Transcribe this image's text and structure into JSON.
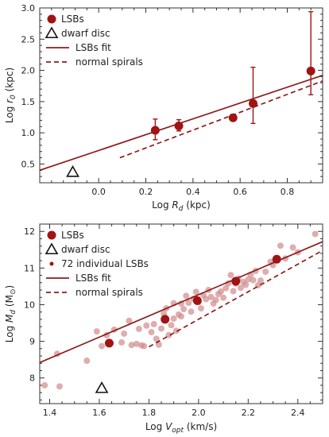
{
  "colors": {
    "lsb": "#a01414",
    "fit": "#8e1b1b",
    "individual": "#d08a8a",
    "dwarf": "#111111",
    "frame": "#333333"
  },
  "chart_data": [
    {
      "type": "scatter",
      "xlabel_main": "Log ",
      "xlabel_var": "R",
      "xlabel_sub": "d",
      "xlabel_unit": " (kpc)",
      "ylabel_main": "Log ",
      "ylabel_var": "r",
      "ylabel_sub": "0",
      "ylabel_unit": " (kpc)",
      "xlim": [
        -0.25,
        0.95
      ],
      "ylim": [
        0.2,
        3.0
      ],
      "x_ticks": [
        0.0,
        0.2,
        0.4,
        0.6,
        0.8
      ],
      "x_tick_labels": [
        "0.0",
        "0.2",
        "0.4",
        "0.6",
        "0.8"
      ],
      "y_ticks": [
        0.5,
        1.0,
        1.5,
        2.0,
        2.5,
        3.0
      ],
      "y_tick_labels": [
        "0.5",
        "1.0",
        "1.5",
        "2.0",
        "2.5",
        "3.0"
      ],
      "legend_position": "top-left",
      "legend": [
        "LSBs",
        "dwarf disc",
        "LSBs fit",
        "normal spirals"
      ],
      "lsbs": [
        {
          "x": 0.24,
          "y": 1.04,
          "err_lo": 0.15,
          "err_hi": 0.18
        },
        {
          "x": 0.34,
          "y": 1.11,
          "err_lo": 0.08,
          "err_hi": 0.1
        },
        {
          "x": 0.57,
          "y": 1.24,
          "err_lo": 0.0,
          "err_hi": 0.0
        },
        {
          "x": 0.655,
          "y": 1.47,
          "err_lo": 0.32,
          "err_hi": 0.58
        },
        {
          "x": 0.9,
          "y": 1.99,
          "err_lo": 0.38,
          "err_hi": 0.95
        }
      ],
      "dwarf": [
        {
          "x": -0.11,
          "y": 0.37
        }
      ],
      "fit": [
        [
          -0.25,
          0.4
        ],
        [
          0.95,
          1.92
        ]
      ],
      "normal": [
        [
          0.09,
          0.6
        ],
        [
          0.95,
          1.83
        ]
      ]
    },
    {
      "type": "scatter",
      "xlabel_main": "Log ",
      "xlabel_var": "V",
      "xlabel_sub": "opt",
      "xlabel_unit": " (km/s)",
      "ylabel_main": "Log ",
      "ylabel_var": "M",
      "ylabel_sub": "d",
      "ylabel_unit": " (M",
      "ylabel_unit_sub": "⊙",
      "ylabel_unit_end": ")",
      "xlim": [
        1.36,
        2.5
      ],
      "ylim": [
        7.3,
        12.2
      ],
      "x_ticks": [
        1.4,
        1.6,
        1.8,
        2.0,
        2.2,
        2.4
      ],
      "x_tick_labels": [
        "1.4",
        "1.6",
        "1.8",
        "2.0",
        "2.2",
        "2.4"
      ],
      "y_ticks": [
        8,
        9,
        10,
        11,
        12
      ],
      "y_tick_labels": [
        "8",
        "9",
        "10",
        "11",
        "12"
      ],
      "legend_position": "top-left",
      "legend": [
        "LSBs",
        "dwarf disc",
        "72 individual LSBs",
        "LSBs fit",
        "normal spirals"
      ],
      "lsbs": [
        {
          "x": 1.64,
          "y": 8.95
        },
        {
          "x": 1.865,
          "y": 9.6
        },
        {
          "x": 1.995,
          "y": 10.11
        },
        {
          "x": 2.15,
          "y": 10.64
        },
        {
          "x": 2.315,
          "y": 11.24
        }
      ],
      "dwarf": [
        {
          "x": 1.61,
          "y": 7.72
        }
      ],
      "individual": [
        [
          1.38,
          7.8
        ],
        [
          1.43,
          8.66
        ],
        [
          1.44,
          7.77
        ],
        [
          1.55,
          8.47
        ],
        [
          1.59,
          9.27
        ],
        [
          1.61,
          8.87
        ],
        [
          1.63,
          9.17
        ],
        [
          1.66,
          9.32
        ],
        [
          1.69,
          8.97
        ],
        [
          1.7,
          9.21
        ],
        [
          1.72,
          9.56
        ],
        [
          1.73,
          8.9
        ],
        [
          1.75,
          8.93
        ],
        [
          1.76,
          9.34
        ],
        [
          1.77,
          8.89
        ],
        [
          1.78,
          8.87
        ],
        [
          1.79,
          9.43
        ],
        [
          1.81,
          9.25
        ],
        [
          1.82,
          9.47
        ],
        [
          1.83,
          9.07
        ],
        [
          1.84,
          8.91
        ],
        [
          1.85,
          9.35
        ],
        [
          1.86,
          9.75
        ],
        [
          1.87,
          9.9
        ],
        [
          1.88,
          9.17
        ],
        [
          1.89,
          9.44
        ],
        [
          1.9,
          9.62
        ],
        [
          1.9,
          10.04
        ],
        [
          1.91,
          9.29
        ],
        [
          1.92,
          9.73
        ],
        [
          1.93,
          10.03
        ],
        [
          1.93,
          9.68
        ],
        [
          1.94,
          9.88
        ],
        [
          1.95,
          10.24
        ],
        [
          1.96,
          10.05
        ],
        [
          1.97,
          9.81
        ],
        [
          1.98,
          10.16
        ],
        [
          1.99,
          10.35
        ],
        [
          2.0,
          10.07
        ],
        [
          2.01,
          9.9
        ],
        [
          2.02,
          10.26
        ],
        [
          2.03,
          10.15
        ],
        [
          2.04,
          10.4
        ],
        [
          2.05,
          10.21
        ],
        [
          2.06,
          10.03
        ],
        [
          2.07,
          10.13
        ],
        [
          2.08,
          10.29
        ],
        [
          2.09,
          10.36
        ],
        [
          2.1,
          10.19
        ],
        [
          2.11,
          10.45
        ],
        [
          2.12,
          10.58
        ],
        [
          2.13,
          10.81
        ],
        [
          2.14,
          10.37
        ],
        [
          2.15,
          10.58
        ],
        [
          2.16,
          10.71
        ],
        [
          2.17,
          10.46
        ],
        [
          2.18,
          10.62
        ],
        [
          2.19,
          10.54
        ],
        [
          2.2,
          10.69
        ],
        [
          2.21,
          10.82
        ],
        [
          2.22,
          10.67
        ],
        [
          2.23,
          10.92
        ],
        [
          2.24,
          10.53
        ],
        [
          2.25,
          10.66
        ],
        [
          2.27,
          10.9
        ],
        [
          2.29,
          11.17
        ],
        [
          2.3,
          11.08
        ],
        [
          2.33,
          11.61
        ],
        [
          2.35,
          11.26
        ],
        [
          2.38,
          11.56
        ],
        [
          2.4,
          11.43
        ],
        [
          2.47,
          11.93
        ]
      ],
      "fit": [
        [
          1.36,
          8.42
        ],
        [
          2.5,
          11.72
        ]
      ],
      "normal": [
        [
          1.8,
          8.85
        ],
        [
          2.5,
          11.48
        ]
      ]
    }
  ]
}
